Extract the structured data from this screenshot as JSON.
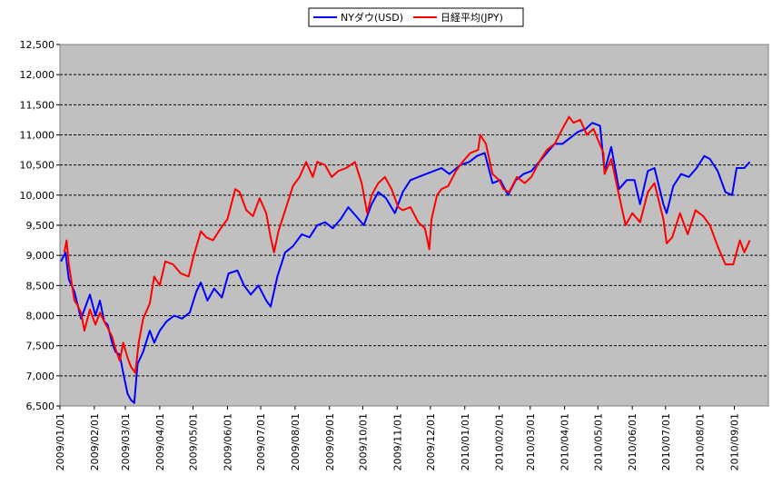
{
  "chart_data": {
    "type": "line",
    "ylim": [
      6500,
      12500
    ],
    "y_ticks": [
      6500,
      7000,
      7500,
      8000,
      8500,
      9000,
      9500,
      10000,
      10500,
      11000,
      11500,
      12000,
      12500
    ],
    "y_tick_labels": [
      "6,500",
      "7,000",
      "7,500",
      "8,000",
      "8,500",
      "9,000",
      "9,500",
      "10,000",
      "10,500",
      "11,000",
      "11,500",
      "12,000",
      "12,500"
    ],
    "x_tick_labels": [
      "2009/01/01",
      "2009/02/01",
      "2009/03/01",
      "2009/04/01",
      "2009/05/01",
      "2009/06/01",
      "2009/07/01",
      "2009/08/01",
      "2009/09/01",
      "2009/10/01",
      "2009/11/01",
      "2009/12/01",
      "2010/01/01",
      "2010/02/01",
      "2010/03/01",
      "2010/04/01",
      "2010/05/01",
      "2010/06/01",
      "2010/07/01",
      "2010/08/01",
      "2010/09/01"
    ],
    "grid": true,
    "legend_position": "top-center",
    "plot_background": "#c0c0c0",
    "series": [
      {
        "name": "NYダウ(USD)",
        "color": "#0000ff",
        "points": [
          [
            "2009/01/02",
            8900
          ],
          [
            "2009/01/06",
            9050
          ],
          [
            "2009/01/09",
            8600
          ],
          [
            "2009/01/14",
            8400
          ],
          [
            "2009/01/20",
            7950
          ],
          [
            "2009/01/23",
            8100
          ],
          [
            "2009/01/28",
            8350
          ],
          [
            "2009/02/02",
            8000
          ],
          [
            "2009/02/06",
            8250
          ],
          [
            "2009/02/10",
            7900
          ],
          [
            "2009/02/13",
            7850
          ],
          [
            "2009/02/17",
            7550
          ],
          [
            "2009/02/20",
            7400
          ],
          [
            "2009/02/24",
            7350
          ],
          [
            "2009/02/27",
            7050
          ],
          [
            "2009/03/03",
            6700
          ],
          [
            "2009/03/06",
            6600
          ],
          [
            "2009/03/09",
            6550
          ],
          [
            "2009/03/12",
            7200
          ],
          [
            "2009/03/17",
            7400
          ],
          [
            "2009/03/23",
            7750
          ],
          [
            "2009/03/27",
            7550
          ],
          [
            "2009/04/01",
            7750
          ],
          [
            "2009/04/07",
            7900
          ],
          [
            "2009/04/14",
            8000
          ],
          [
            "2009/04/21",
            7950
          ],
          [
            "2009/04/28",
            8050
          ],
          [
            "2009/05/04",
            8400
          ],
          [
            "2009/05/08",
            8550
          ],
          [
            "2009/05/14",
            8250
          ],
          [
            "2009/05/20",
            8450
          ],
          [
            "2009/05/27",
            8300
          ],
          [
            "2009/06/02",
            8700
          ],
          [
            "2009/06/10",
            8750
          ],
          [
            "2009/06/16",
            8500
          ],
          [
            "2009/06/22",
            8350
          ],
          [
            "2009/06/29",
            8500
          ],
          [
            "2009/07/06",
            8250
          ],
          [
            "2009/07/10",
            8150
          ],
          [
            "2009/07/16",
            8650
          ],
          [
            "2009/07/23",
            9050
          ],
          [
            "2009/07/30",
            9150
          ],
          [
            "2009/08/07",
            9350
          ],
          [
            "2009/08/14",
            9300
          ],
          [
            "2009/08/21",
            9500
          ],
          [
            "2009/08/28",
            9550
          ],
          [
            "2009/09/04",
            9450
          ],
          [
            "2009/09/11",
            9600
          ],
          [
            "2009/09/18",
            9800
          ],
          [
            "2009/09/25",
            9650
          ],
          [
            "2009/10/02",
            9500
          ],
          [
            "2009/10/09",
            9850
          ],
          [
            "2009/10/15",
            10050
          ],
          [
            "2009/10/22",
            9950
          ],
          [
            "2009/10/30",
            9700
          ],
          [
            "2009/11/06",
            10050
          ],
          [
            "2009/11/13",
            10250
          ],
          [
            "2009/11/20",
            10300
          ],
          [
            "2009/11/27",
            10350
          ],
          [
            "2009/12/04",
            10400
          ],
          [
            "2009/12/11",
            10450
          ],
          [
            "2009/12/18",
            10350
          ],
          [
            "2009/12/28",
            10500
          ],
          [
            "2010/01/05",
            10550
          ],
          [
            "2010/01/12",
            10650
          ],
          [
            "2010/01/19",
            10700
          ],
          [
            "2010/01/26",
            10200
          ],
          [
            "2010/02/02",
            10250
          ],
          [
            "2010/02/09",
            10000
          ],
          [
            "2010/02/16",
            10250
          ],
          [
            "2010/02/23",
            10350
          ],
          [
            "2010/03/02",
            10400
          ],
          [
            "2010/03/09",
            10550
          ],
          [
            "2010/03/16",
            10700
          ],
          [
            "2010/03/23",
            10850
          ],
          [
            "2010/03/30",
            10850
          ],
          [
            "2010/04/06",
            10950
          ],
          [
            "2010/04/13",
            11050
          ],
          [
            "2010/04/20",
            11100
          ],
          [
            "2010/04/26",
            11200
          ],
          [
            "2010/05/03",
            11150
          ],
          [
            "2010/05/07",
            10400
          ],
          [
            "2010/05/13",
            10800
          ],
          [
            "2010/05/20",
            10100
          ],
          [
            "2010/05/27",
            10250
          ],
          [
            "2010/06/03",
            10250
          ],
          [
            "2010/06/08",
            9850
          ],
          [
            "2010/06/15",
            10400
          ],
          [
            "2010/06/21",
            10450
          ],
          [
            "2010/06/29",
            9850
          ],
          [
            "2010/07/02",
            9700
          ],
          [
            "2010/07/08",
            10150
          ],
          [
            "2010/07/15",
            10350
          ],
          [
            "2010/07/22",
            10300
          ],
          [
            "2010/07/29",
            10450
          ],
          [
            "2010/08/05",
            10650
          ],
          [
            "2010/08/10",
            10600
          ],
          [
            "2010/08/17",
            10400
          ],
          [
            "2010/08/24",
            10050
          ],
          [
            "2010/08/30",
            10000
          ],
          [
            "2010/09/03",
            10450
          ],
          [
            "2010/09/10",
            10450
          ],
          [
            "2010/09/15",
            10550
          ]
        ]
      },
      {
        "name": "日経平均(JPY)",
        "color": "#ff0000",
        "points": [
          [
            "2009/01/05",
            9050
          ],
          [
            "2009/01/07",
            9250
          ],
          [
            "2009/01/09",
            8850
          ],
          [
            "2009/01/14",
            8250
          ],
          [
            "2009/01/16",
            8200
          ],
          [
            "2009/01/20",
            8050
          ],
          [
            "2009/01/23",
            7750
          ],
          [
            "2009/01/28",
            8100
          ],
          [
            "2009/02/02",
            7850
          ],
          [
            "2009/02/06",
            8050
          ],
          [
            "2009/02/10",
            7900
          ],
          [
            "2009/02/13",
            7800
          ],
          [
            "2009/02/17",
            7650
          ],
          [
            "2009/02/20",
            7450
          ],
          [
            "2009/02/24",
            7250
          ],
          [
            "2009/02/27",
            7550
          ],
          [
            "2009/03/03",
            7300
          ],
          [
            "2009/03/06",
            7150
          ],
          [
            "2009/03/10",
            7050
          ],
          [
            "2009/03/13",
            7550
          ],
          [
            "2009/03/17",
            7950
          ],
          [
            "2009/03/23",
            8200
          ],
          [
            "2009/03/27",
            8650
          ],
          [
            "2009/04/01",
            8500
          ],
          [
            "2009/04/06",
            8900
          ],
          [
            "2009/04/13",
            8850
          ],
          [
            "2009/04/20",
            8700
          ],
          [
            "2009/04/27",
            8650
          ],
          [
            "2009/05/01",
            8950
          ],
          [
            "2009/05/08",
            9400
          ],
          [
            "2009/05/13",
            9300
          ],
          [
            "2009/05/19",
            9250
          ],
          [
            "2009/05/26",
            9450
          ],
          [
            "2009/06/01",
            9600
          ],
          [
            "2009/06/08",
            10100
          ],
          [
            "2009/06/12",
            10050
          ],
          [
            "2009/06/18",
            9750
          ],
          [
            "2009/06/24",
            9650
          ],
          [
            "2009/06/30",
            9950
          ],
          [
            "2009/07/06",
            9700
          ],
          [
            "2009/07/10",
            9300
          ],
          [
            "2009/07/13",
            9050
          ],
          [
            "2009/07/17",
            9400
          ],
          [
            "2009/07/24",
            9800
          ],
          [
            "2009/07/30",
            10150
          ],
          [
            "2009/08/05",
            10300
          ],
          [
            "2009/08/11",
            10550
          ],
          [
            "2009/08/17",
            10300
          ],
          [
            "2009/08/21",
            10550
          ],
          [
            "2009/08/28",
            10500
          ],
          [
            "2009/09/03",
            10300
          ],
          [
            "2009/09/09",
            10400
          ],
          [
            "2009/09/16",
            10450
          ],
          [
            "2009/09/24",
            10550
          ],
          [
            "2009/09/30",
            10200
          ],
          [
            "2009/10/05",
            9700
          ],
          [
            "2009/10/09",
            10000
          ],
          [
            "2009/10/15",
            10200
          ],
          [
            "2009/10/21",
            10300
          ],
          [
            "2009/10/27",
            10100
          ],
          [
            "2009/11/02",
            9800
          ],
          [
            "2009/11/06",
            9750
          ],
          [
            "2009/11/13",
            9800
          ],
          [
            "2009/11/20",
            9550
          ],
          [
            "2009/11/26",
            9450
          ],
          [
            "2009/11/30",
            9100
          ],
          [
            "2009/12/02",
            9600
          ],
          [
            "2009/12/07",
            10000
          ],
          [
            "2009/12/11",
            10100
          ],
          [
            "2009/12/17",
            10150
          ],
          [
            "2009/12/24",
            10400
          ],
          [
            "2009/12/30",
            10550
          ],
          [
            "2010/01/06",
            10700
          ],
          [
            "2010/01/13",
            10750
          ],
          [
            "2010/01/15",
            11000
          ],
          [
            "2010/01/20",
            10850
          ],
          [
            "2010/01/26",
            10350
          ],
          [
            "2010/02/01",
            10250
          ],
          [
            "2010/02/05",
            10100
          ],
          [
            "2010/02/10",
            10050
          ],
          [
            "2010/02/17",
            10300
          ],
          [
            "2010/02/24",
            10200
          ],
          [
            "2010/03/02",
            10300
          ],
          [
            "2010/03/09",
            10550
          ],
          [
            "2010/03/16",
            10750
          ],
          [
            "2010/03/23",
            10850
          ],
          [
            "2010/03/30",
            11100
          ],
          [
            "2010/04/05",
            11300
          ],
          [
            "2010/04/09",
            11200
          ],
          [
            "2010/04/15",
            11250
          ],
          [
            "2010/04/21",
            11000
          ],
          [
            "2010/04/27",
            11100
          ],
          [
            "2010/05/06",
            10700
          ],
          [
            "2010/05/07",
            10350
          ],
          [
            "2010/05/13",
            10600
          ],
          [
            "2010/05/20",
            10000
          ],
          [
            "2010/05/26",
            9500
          ],
          [
            "2010/06/01",
            9700
          ],
          [
            "2010/06/08",
            9550
          ],
          [
            "2010/06/15",
            10050
          ],
          [
            "2010/06/21",
            10200
          ],
          [
            "2010/06/29",
            9600
          ],
          [
            "2010/07/02",
            9200
          ],
          [
            "2010/07/07",
            9300
          ],
          [
            "2010/07/14",
            9700
          ],
          [
            "2010/07/21",
            9350
          ],
          [
            "2010/07/28",
            9750
          ],
          [
            "2010/08/04",
            9650
          ],
          [
            "2010/08/10",
            9500
          ],
          [
            "2010/08/17",
            9150
          ],
          [
            "2010/08/24",
            8850
          ],
          [
            "2010/08/31",
            8850
          ],
          [
            "2010/09/06",
            9250
          ],
          [
            "2010/09/10",
            9050
          ],
          [
            "2010/09/15",
            9250
          ]
        ]
      }
    ]
  }
}
